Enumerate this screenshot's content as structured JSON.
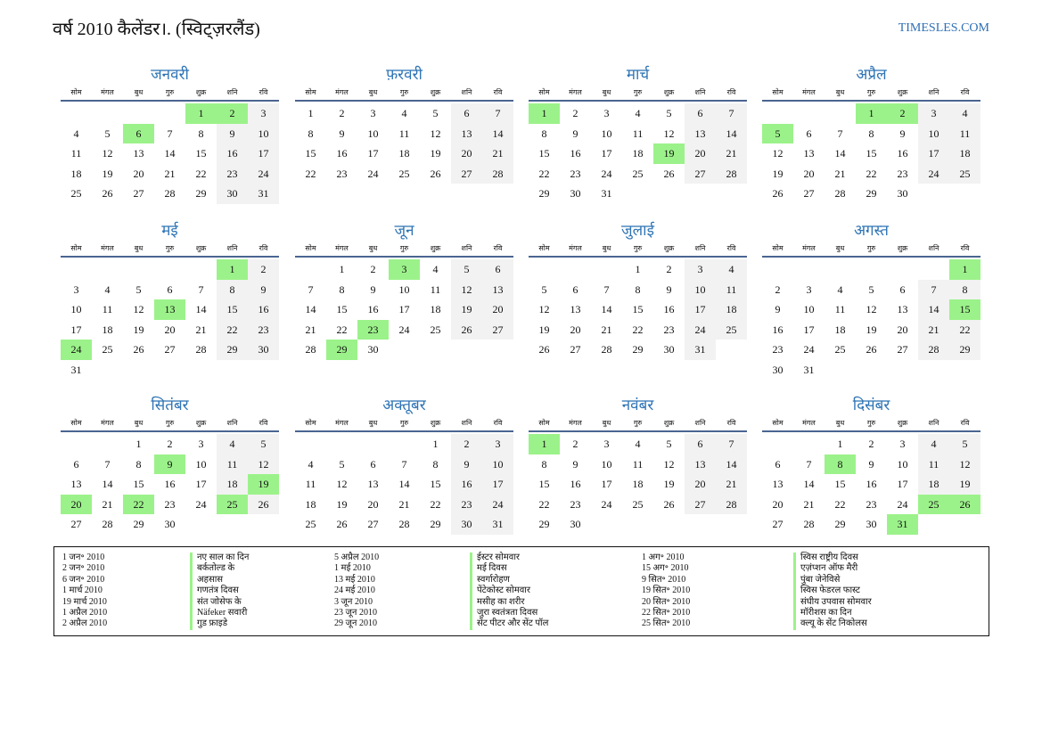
{
  "title": "वर्ष 2010 कैलेंडर।. (स्विट्ज़रलैंड)",
  "brand": "TIMESLES.COM",
  "weekdays": [
    "सोम",
    "मंगल",
    "बुध",
    "गुरु",
    "शुक्र",
    "शनि",
    "रवि"
  ],
  "colors": {
    "accent": "#2e74b5",
    "highlight": "#9cf28a",
    "weekend": "#f2f2f2"
  },
  "months": [
    {
      "name": "जनवरी",
      "first_weekday": 4,
      "days": 31,
      "highlights": [
        1,
        2,
        6
      ]
    },
    {
      "name": "फ़रवरी",
      "first_weekday": 0,
      "days": 28,
      "highlights": []
    },
    {
      "name": "मार्च",
      "first_weekday": 0,
      "days": 31,
      "highlights": [
        1,
        19
      ]
    },
    {
      "name": "अप्रैल",
      "first_weekday": 3,
      "days": 30,
      "highlights": [
        1,
        2,
        5
      ]
    },
    {
      "name": "मई",
      "first_weekday": 5,
      "days": 31,
      "highlights": [
        1,
        13,
        24
      ]
    },
    {
      "name": "जून",
      "first_weekday": 1,
      "days": 30,
      "highlights": [
        3,
        23,
        29
      ]
    },
    {
      "name": "जुलाई",
      "first_weekday": 3,
      "days": 31,
      "highlights": []
    },
    {
      "name": "अगस्त",
      "first_weekday": 6,
      "days": 31,
      "highlights": [
        1,
        15
      ]
    },
    {
      "name": "सितंबर",
      "first_weekday": 2,
      "days": 30,
      "highlights": [
        9,
        19,
        20,
        22,
        25
      ]
    },
    {
      "name": "अक्तूबर",
      "first_weekday": 4,
      "days": 31,
      "highlights": []
    },
    {
      "name": "नवंबर",
      "first_weekday": 0,
      "days": 30,
      "highlights": [
        1
      ]
    },
    {
      "name": "दिसंबर",
      "first_weekday": 2,
      "days": 31,
      "highlights": [
        8,
        25,
        26,
        31
      ]
    }
  ],
  "holidays": [
    [
      {
        "date": "1 जन॰ 2010",
        "name": "नए साल का दिन"
      },
      {
        "date": "2 जन॰ 2010",
        "name": "बर्कतोल्ड के"
      },
      {
        "date": "6 जन॰ 2010",
        "name": "अहसास"
      },
      {
        "date": "1 मार्च 2010",
        "name": "गणतंत्र दिवस"
      },
      {
        "date": "19 मार्च 2010",
        "name": "संत जोसेफ के"
      },
      {
        "date": "1 अप्रैल 2010",
        "name": "Näfeker सवारी"
      },
      {
        "date": "2 अप्रैल 2010",
        "name": "गुड फ्राइडे"
      }
    ],
    [
      {
        "date": "5 अप्रैल 2010",
        "name": "ईस्टर सोमवार"
      },
      {
        "date": "1 मई 2010",
        "name": "मई दिवस"
      },
      {
        "date": "13 मई 2010",
        "name": "स्वर्गारोहण"
      },
      {
        "date": "24 मई 2010",
        "name": "पेंटेकोस्ट सोमवार"
      },
      {
        "date": "3 जून 2010",
        "name": "मसीह का शरीर"
      },
      {
        "date": "23 जून 2010",
        "name": "जुरा स्वतंत्रता दिवस"
      },
      {
        "date": "29 जून 2010",
        "name": "सेंट पीटर और सेंट पॉल"
      }
    ],
    [
      {
        "date": "1 अग॰ 2010",
        "name": "स्विस राष्ट्रीय दिवस"
      },
      {
        "date": "15 अग॰ 2010",
        "name": "एज़ंप्शन ऑफ मैरी"
      },
      {
        "date": "9 सित॰ 2010",
        "name": "पुंबा जेनेविसे"
      },
      {
        "date": "19 सित॰ 2010",
        "name": "स्विस फेडरल फास्ट"
      },
      {
        "date": "20 सित॰ 2010",
        "name": "संघीय उपवास सोमवार"
      },
      {
        "date": "22 सित॰ 2010",
        "name": "मॉरीशस का दिन"
      },
      {
        "date": "25 सित॰ 2010",
        "name": "क्ल्यू के सेंट निकोलस"
      }
    ]
  ]
}
